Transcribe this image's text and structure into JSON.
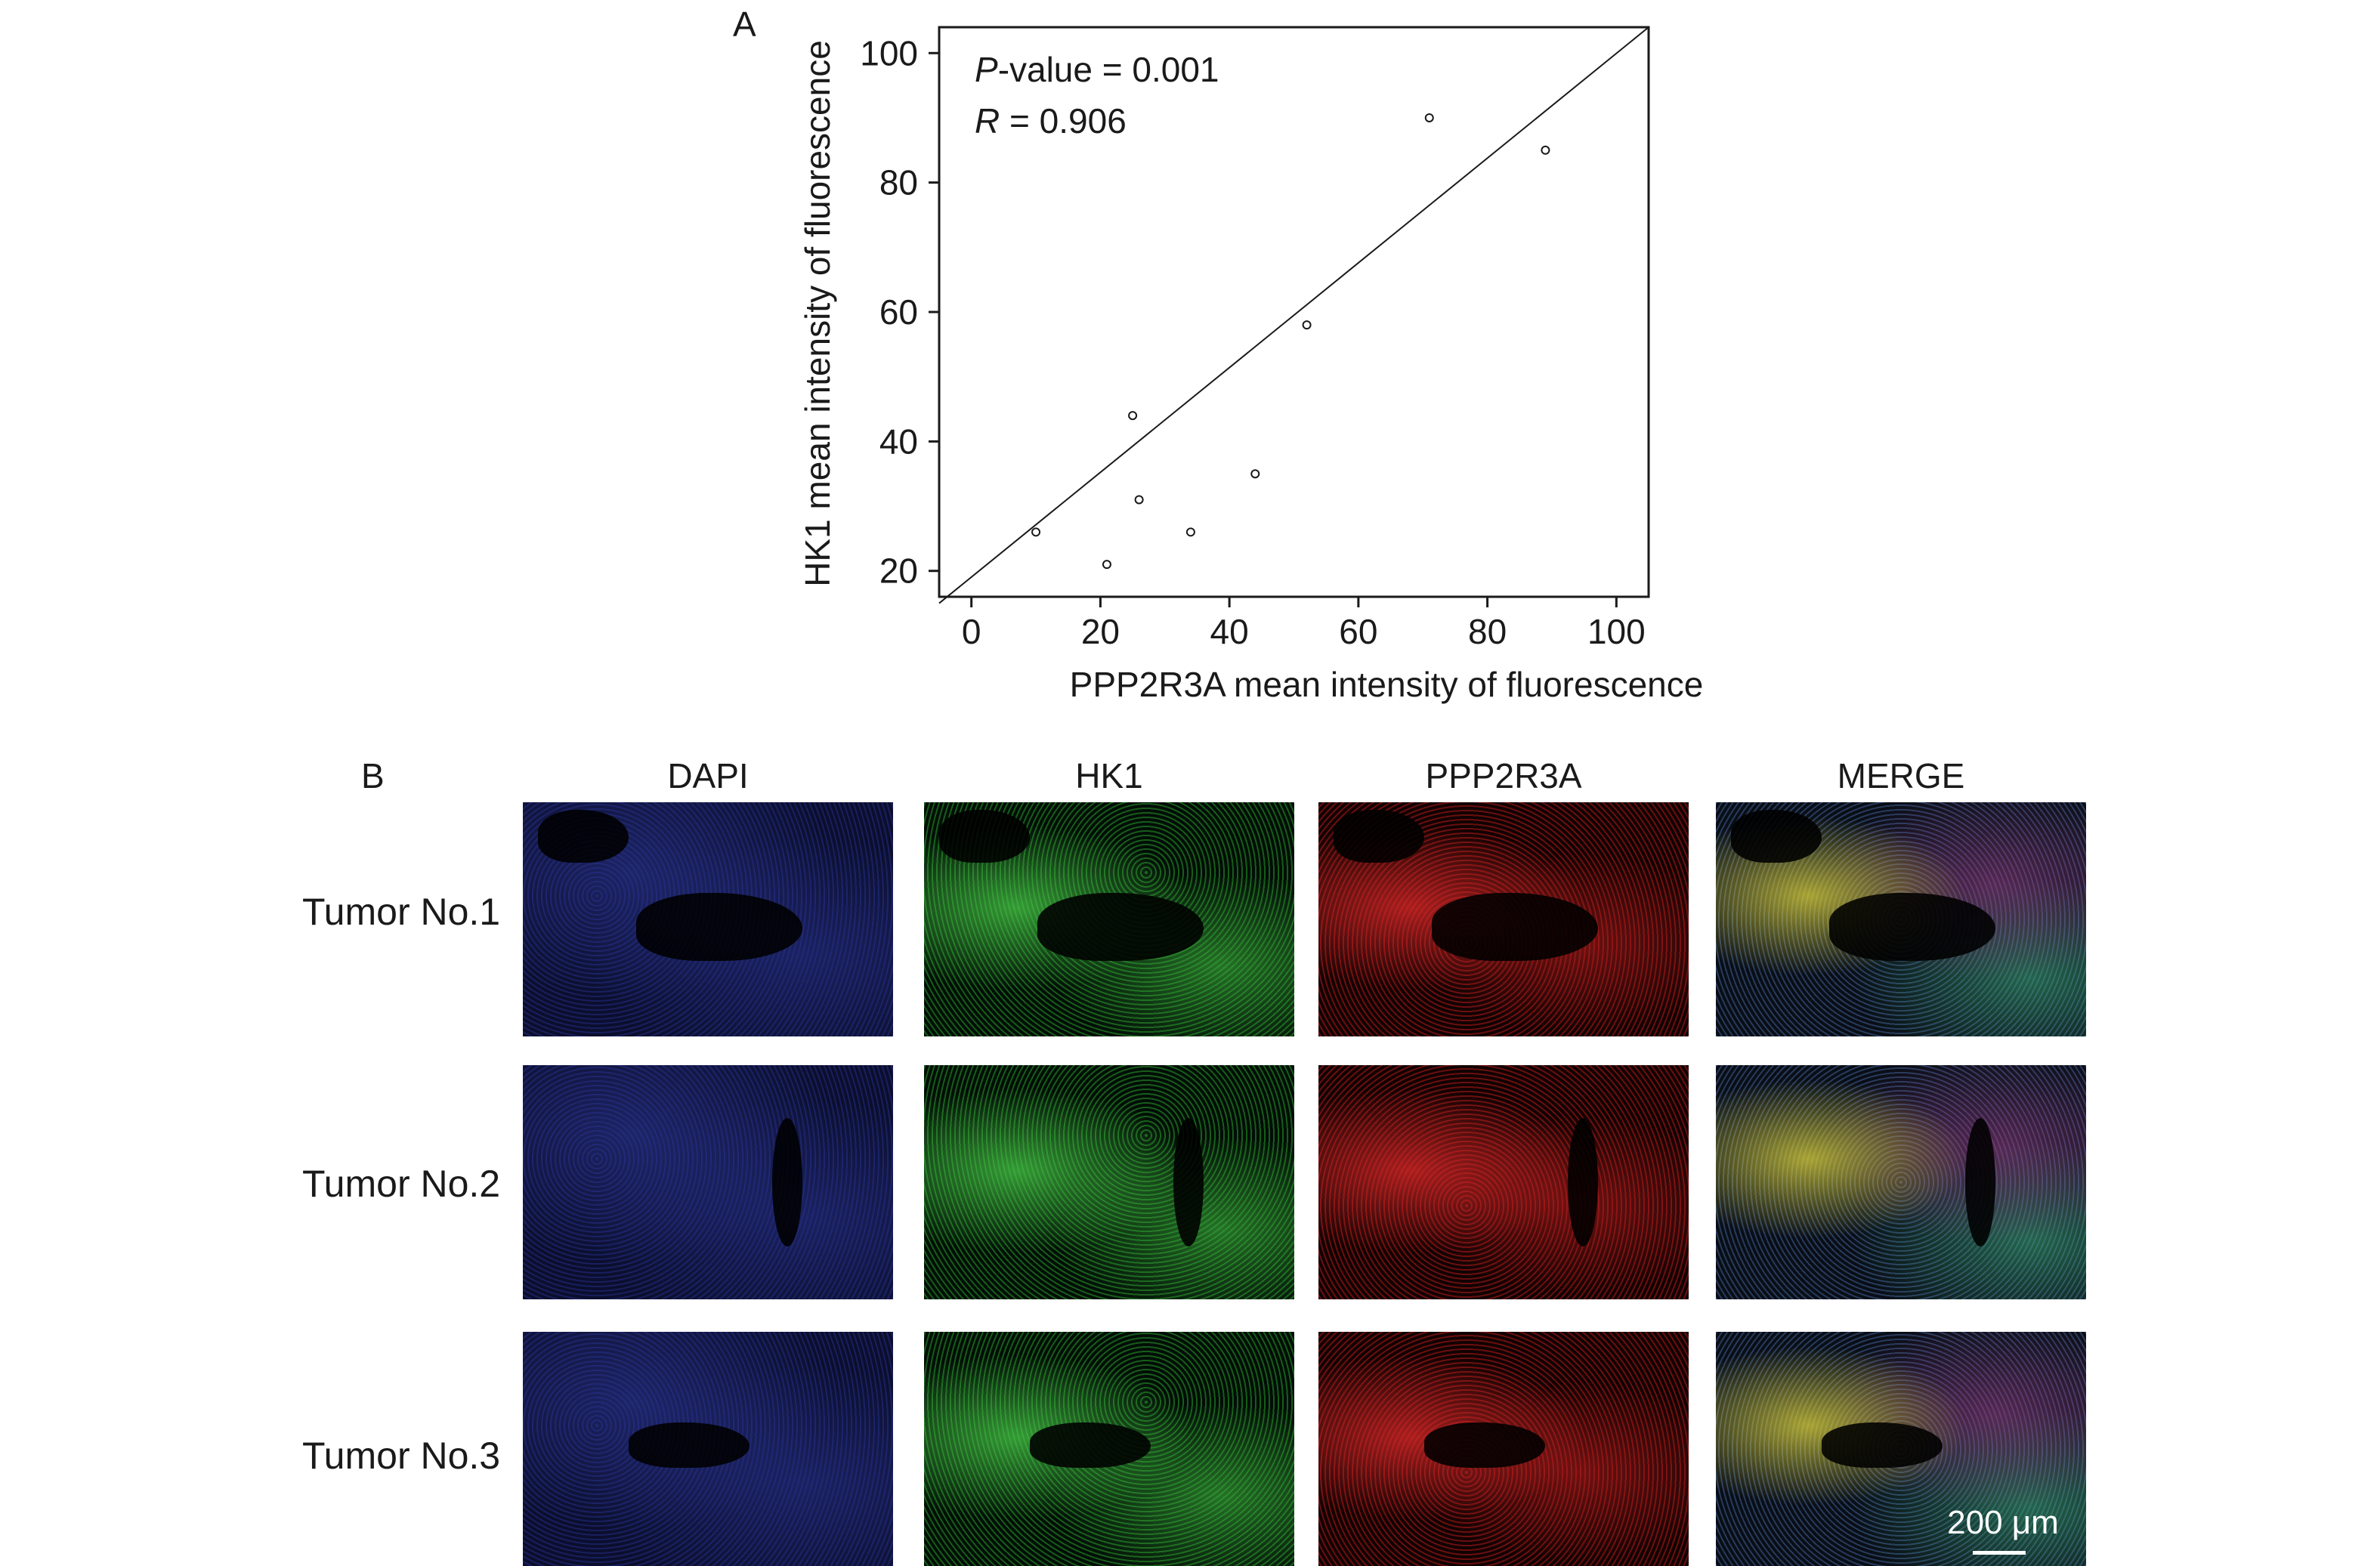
{
  "panel_a": {
    "letter": "A"
  },
  "panel_b": {
    "letter": "B",
    "columns": [
      "DAPI",
      "HK1",
      "PPP2R3A",
      "MERGE"
    ],
    "rows": [
      "Tumor No.1",
      "Tumor No.2",
      "Tumor No.3"
    ],
    "scale_bar": "200 μm"
  },
  "chart_data": {
    "type": "scatter",
    "xlabel": "PPP2R3A mean intensity of fluorescence",
    "ylabel": "HK1 mean intensity of fluorescence",
    "xlim": [
      -5,
      105
    ],
    "ylim": [
      16,
      104
    ],
    "xticks": [
      0,
      20,
      40,
      60,
      80,
      100
    ],
    "yticks": [
      20,
      40,
      60,
      80,
      100
    ],
    "annotations": [
      {
        "italic": "P",
        "text": "-value = 0.001"
      },
      {
        "italic": "R",
        "text": " = 0.906"
      }
    ],
    "x": [
      10,
      21,
      25,
      26,
      34,
      44,
      52,
      71,
      89
    ],
    "y": [
      26,
      21,
      44,
      31,
      26,
      35,
      58,
      90,
      85
    ],
    "fit_line": {
      "x": [
        -5,
        105
      ],
      "y": [
        15,
        104
      ]
    },
    "grid": false,
    "legend": "none"
  }
}
